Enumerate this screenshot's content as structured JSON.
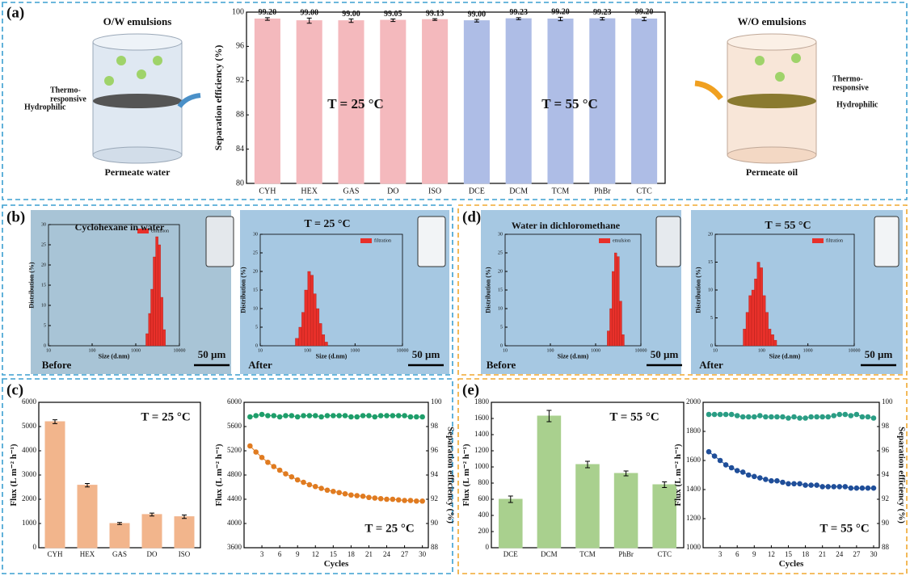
{
  "figure": {
    "panel_labels": [
      "(a)",
      "(b)",
      "(c)",
      "(d)",
      "(e)"
    ],
    "ow": {
      "title": "O/W emulsions",
      "layer1": [
        "Thermo-",
        "responsive"
      ],
      "layer2": "Hydrophilic",
      "caption": "Permeate water"
    },
    "wo": {
      "title": "W/O emulsions",
      "layer1": [
        "Thermo-",
        "responsive"
      ],
      "layer2": "Hydrophilic",
      "caption": "Permeate oil"
    }
  },
  "chart_data": [
    {
      "type": "bar",
      "ylabel": "Separation efficiency (%)",
      "categories": [
        "CYH",
        "HEX",
        "GAS",
        "DO",
        "ISO",
        "DCE",
        "DCM",
        "TCM",
        "PhBr",
        "CTC"
      ],
      "values": [
        99.2,
        99.0,
        99.0,
        99.05,
        99.13,
        99.0,
        99.23,
        99.2,
        99.23,
        99.2
      ],
      "value_labels": [
        "99.20",
        "99.00",
        "99.00",
        "99.05",
        "99.13",
        "99.00",
        "99.23",
        "99.20",
        "99.23",
        "99.20"
      ],
      "errors": [
        0.15,
        0.3,
        0.2,
        0.15,
        0.1,
        0.15,
        0.12,
        0.2,
        0.15,
        0.2
      ],
      "colors": [
        "#f4b9bd",
        "#f4b9bd",
        "#f4b9bd",
        "#f4b9bd",
        "#f4b9bd",
        "#aebde6",
        "#aebde6",
        "#aebde6",
        "#aebde6",
        "#aebde6"
      ],
      "ylim": [
        80,
        100
      ],
      "yticks": [
        80,
        84,
        88,
        92,
        96,
        100
      ],
      "annotations": [
        "T = 25 °C",
        "T = 55 °C"
      ]
    },
    {
      "type": "histogram",
      "xscale": "log",
      "xlabel": "Size (d.nm)",
      "ylabel": "Distribution (%)",
      "bins": [
        1700,
        1950,
        2200,
        2500,
        2850,
        3250,
        3700,
        4200,
        4800
      ],
      "series": [
        {
          "name": "emulsion",
          "color": "#e8302a",
          "values": [
            3,
            8,
            14,
            22,
            27,
            25,
            12,
            4
          ]
        }
      ],
      "xlim": [
        10,
        10000
      ],
      "xticks": [
        10,
        100,
        1000,
        10000
      ],
      "ylim": [
        0,
        30
      ],
      "yticks": [
        0,
        5,
        10,
        15,
        20,
        25,
        30
      ],
      "annotations": [
        "Cyclohexane in water",
        "Before",
        "50 µm"
      ]
    },
    {
      "type": "histogram",
      "xscale": "log",
      "xlabel": "Size (d.nm)",
      "ylabel": "Distribution (%)",
      "bins": [
        55,
        65,
        75,
        86,
        100,
        115,
        132,
        152,
        175,
        200,
        230,
        265
      ],
      "series": [
        {
          "name": "filtration",
          "color": "#e8302a",
          "values": [
            2,
            5,
            9,
            15,
            20,
            19,
            14,
            10,
            6,
            3,
            1
          ]
        }
      ],
      "xlim": [
        10,
        10000
      ],
      "xticks": [
        10,
        100,
        1000,
        10000
      ],
      "ylim": [
        0,
        30
      ],
      "yticks": [
        0,
        5,
        10,
        15,
        20,
        25,
        30
      ],
      "annotations": [
        "T = 25 °C",
        "After",
        "50 µm"
      ]
    },
    {
      "type": "histogram",
      "xscale": "log",
      "xlabel": "Size (d.nm)",
      "ylabel": "Distribution (%)",
      "bins": [
        1800,
        2050,
        2300,
        2600,
        2950,
        3350,
        3800,
        4300
      ],
      "series": [
        {
          "name": "emulsion",
          "color": "#e8302a",
          "values": [
            4,
            10,
            20,
            25,
            24,
            12,
            3
          ]
        }
      ],
      "xlim": [
        10,
        10000
      ],
      "xticks": [
        10,
        100,
        1000,
        10000
      ],
      "ylim": [
        0,
        30
      ],
      "yticks": [
        0,
        5,
        10,
        15,
        20,
        25,
        30
      ],
      "annotations": [
        "Water in dichloromethane",
        "Before",
        "50 µm"
      ]
    },
    {
      "type": "histogram",
      "xscale": "log",
      "xlabel": "Size (d.nm)",
      "ylabel": "Distribution (%)",
      "bins": [
        40,
        46,
        53,
        61,
        70,
        80,
        92,
        106,
        122,
        140,
        160,
        185,
        212
      ],
      "series": [
        {
          "name": "filtration",
          "color": "#e8302a",
          "values": [
            3,
            6,
            9,
            10,
            12,
            15,
            14,
            9,
            6,
            3,
            2,
            1
          ]
        }
      ],
      "xlim": [
        10,
        10000
      ],
      "xticks": [
        10,
        100,
        1000,
        10000
      ],
      "ylim": [
        0,
        20
      ],
      "yticks": [
        0,
        5,
        10,
        15,
        20
      ],
      "annotations": [
        "T = 55 °C",
        "After",
        "50 µm"
      ]
    },
    {
      "type": "bar",
      "ylabel": "Flux (L m⁻² h⁻¹)",
      "categories": [
        "CYH",
        "HEX",
        "GAS",
        "DO",
        "ISO"
      ],
      "values": [
        5200,
        2580,
        1000,
        1370,
        1280
      ],
      "errors": [
        80,
        70,
        40,
        60,
        70
      ],
      "color": "#f2b58c",
      "ylim": [
        0,
        6000
      ],
      "yticks": [
        0,
        1000,
        2000,
        3000,
        4000,
        5000,
        6000
      ],
      "annotations": [
        "T = 25 °C"
      ]
    },
    {
      "type": "line",
      "xlabel": "Cycles",
      "ylabel": "Flux (L m⁻² h⁻¹)",
      "y2label": "Separation efficiency (%)",
      "x": [
        1,
        2,
        3,
        4,
        5,
        6,
        7,
        8,
        9,
        10,
        11,
        12,
        13,
        14,
        15,
        16,
        17,
        18,
        19,
        20,
        21,
        22,
        23,
        24,
        25,
        26,
        27,
        28,
        29,
        30
      ],
      "series": [
        {
          "color": "#e07b20",
          "values": [
            5280,
            5180,
            5090,
            5010,
            4940,
            4880,
            4820,
            4770,
            4720,
            4680,
            4640,
            4610,
            4580,
            4550,
            4530,
            4510,
            4490,
            4470,
            4460,
            4450,
            4430,
            4420,
            4410,
            4400,
            4400,
            4390,
            4380,
            4380,
            4370,
            4370
          ]
        },
        {
          "color": "#1e9e6a",
          "axis": "y2",
          "values": [
            98.8,
            98.9,
            99.0,
            98.9,
            98.9,
            98.8,
            98.9,
            98.9,
            98.8,
            98.9,
            98.9,
            98.9,
            98.8,
            98.9,
            98.9,
            98.9,
            98.9,
            98.8,
            98.8,
            98.9,
            98.9,
            98.8,
            98.9,
            98.9,
            98.9,
            98.9,
            98.9,
            98.8,
            98.8,
            98.8
          ]
        }
      ],
      "xlim": [
        0,
        31
      ],
      "xticks": [
        3,
        6,
        9,
        12,
        15,
        18,
        21,
        24,
        27,
        30
      ],
      "ylim": [
        3600,
        6000
      ],
      "yticks": [
        3600,
        4000,
        4400,
        4800,
        5200,
        5600,
        6000
      ],
      "y2lim": [
        88,
        100
      ],
      "y2ticks": [
        88,
        90,
        92,
        94,
        96,
        98,
        100
      ],
      "annotations": [
        "T = 25 °C"
      ]
    },
    {
      "type": "bar",
      "ylabel": "Flux (L m⁻² h⁻¹)",
      "categories": [
        "DCE",
        "DCM",
        "TCM",
        "PhBr",
        "CTC"
      ],
      "values": [
        600,
        1630,
        1030,
        920,
        780
      ],
      "errors": [
        40,
        70,
        40,
        30,
        35
      ],
      "color": "#a9d08e",
      "ylim": [
        0,
        1800
      ],
      "yticks": [
        0,
        200,
        400,
        600,
        800,
        1000,
        1200,
        1400,
        1600,
        1800
      ],
      "annotations": [
        "T = 55 °C"
      ]
    },
    {
      "type": "line",
      "xlabel": "Cycles",
      "ylabel": "Flux (L m⁻² h⁻¹)",
      "y2label": "Separation efficiency (%)",
      "x": [
        1,
        2,
        3,
        4,
        5,
        6,
        7,
        8,
        9,
        10,
        11,
        12,
        13,
        14,
        15,
        16,
        17,
        18,
        19,
        20,
        21,
        22,
        23,
        24,
        25,
        26,
        27,
        28,
        29,
        30
      ],
      "series": [
        {
          "color": "#1f4e99",
          "values": [
            1660,
            1630,
            1600,
            1570,
            1550,
            1530,
            1520,
            1500,
            1490,
            1480,
            1470,
            1460,
            1460,
            1450,
            1440,
            1440,
            1440,
            1430,
            1430,
            1430,
            1420,
            1420,
            1420,
            1420,
            1420,
            1410,
            1410,
            1410,
            1410,
            1410
          ]
        },
        {
          "color": "#2a9d84",
          "axis": "y2",
          "values": [
            99.0,
            99.0,
            99.0,
            99.0,
            99.0,
            98.9,
            98.8,
            98.8,
            98.8,
            98.9,
            98.8,
            98.8,
            98.8,
            98.8,
            98.7,
            98.8,
            98.7,
            98.7,
            98.8,
            98.8,
            98.8,
            98.8,
            98.9,
            99.0,
            99.0,
            98.9,
            99.0,
            98.8,
            98.8,
            98.7
          ]
        }
      ],
      "xlim": [
        0,
        31
      ],
      "xticks": [
        3,
        6,
        9,
        12,
        15,
        18,
        21,
        24,
        27,
        30
      ],
      "ylim": [
        1000,
        2000
      ],
      "yticks": [
        1000,
        1200,
        1400,
        1600,
        1800,
        2000
      ],
      "y2lim": [
        88,
        100
      ],
      "y2ticks": [
        88,
        90,
        92,
        94,
        96,
        98,
        100
      ],
      "annotations": [
        "T = 55 °C"
      ]
    }
  ]
}
